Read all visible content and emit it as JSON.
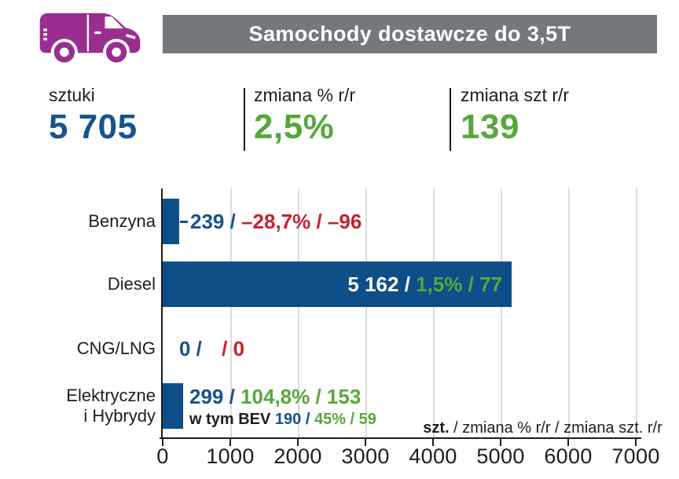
{
  "colors": {
    "purple": "#9A2D90",
    "banner_gray": "#75787B",
    "bar_blue": "#0E4E89",
    "text_blue": "#15538E",
    "green": "#56A83B",
    "red": "#C5212F",
    "dark": "#1D1D1B",
    "grid_gray": "#DBDBDB",
    "white": "#FFFFFF"
  },
  "icons": {
    "van_icon": "delivery-van-silhouette"
  },
  "header": {
    "title": "Samochody dostawcze do 3,5T"
  },
  "stats": [
    {
      "label": "sztuki",
      "value": "5 705",
      "color_role": "text_blue"
    },
    {
      "label": "zmiana % r/r",
      "value": "2,5%",
      "color_role": "green"
    },
    {
      "label": "zmiana szt r/r",
      "value": "139",
      "color_role": "green"
    }
  ],
  "chart_data": {
    "type": "bar",
    "orientation": "horizontal",
    "title": "",
    "xlabel": "",
    "ylabel": "",
    "xlim": [
      0,
      7000
    ],
    "x_ticks": [
      "0",
      "1000",
      "2000",
      "3000",
      "4000",
      "5000",
      "6000",
      "7000"
    ],
    "grid": true,
    "legend_note": {
      "bold": "szt.",
      "rest": " / zmiana % r/r / zmiana szt. r/r"
    },
    "categories": [
      "Benzyna",
      "Diesel",
      "CNG/LNG",
      "Elektryczne i Hybrydy"
    ],
    "values": [
      239,
      5162,
      0,
      299
    ],
    "rows": [
      {
        "category_lines": [
          "Benzyna"
        ],
        "value": 239,
        "inside": false,
        "connector": true,
        "segments": [
          {
            "text": "239 / ",
            "role": "blue"
          },
          {
            "text": "–28,7% / –96",
            "role": "red"
          }
        ]
      },
      {
        "category_lines": [
          "Diesel"
        ],
        "value": 5162,
        "inside": true,
        "segments": [
          {
            "text": "5 162 / ",
            "role": "white"
          },
          {
            "text": "1,5% / 77",
            "role": "green"
          }
        ]
      },
      {
        "category_lines": [
          "CNG/LNG"
        ],
        "value": 0,
        "inside": false,
        "segments": [
          {
            "text": "0 / ",
            "role": "blue"
          },
          {
            "text": "",
            "role": "gap"
          },
          {
            "text": "/ 0",
            "role": "red"
          }
        ]
      },
      {
        "category_lines": [
          "Elektryczne",
          "i Hybrydy"
        ],
        "value": 299,
        "inside": false,
        "segments": [
          {
            "text": "299 / ",
            "role": "blue"
          },
          {
            "text": "104,8% / 153",
            "role": "green"
          }
        ],
        "sub_segments": [
          {
            "text": "w tym BEV ",
            "role": "dark"
          },
          {
            "text": "190 / ",
            "role": "blue"
          },
          {
            "text": "45% / 59",
            "role": "green"
          }
        ]
      }
    ],
    "detail": [
      {
        "fuel": "Benzyna",
        "units": 239,
        "change_pct_yoy": "-28,7%",
        "change_units_yoy": -96
      },
      {
        "fuel": "Diesel",
        "units": 5162,
        "change_pct_yoy": "1,5%",
        "change_units_yoy": 77
      },
      {
        "fuel": "CNG/LNG",
        "units": 0,
        "change_units_yoy": 0
      },
      {
        "fuel": "Elektryczne i Hybrydy",
        "units": 299,
        "change_pct_yoy": "104,8%",
        "change_units_yoy": 153,
        "w_tym_BEV": {
          "units": 190,
          "change_pct_yoy": "45%",
          "change_units_yoy": 59
        }
      }
    ]
  }
}
